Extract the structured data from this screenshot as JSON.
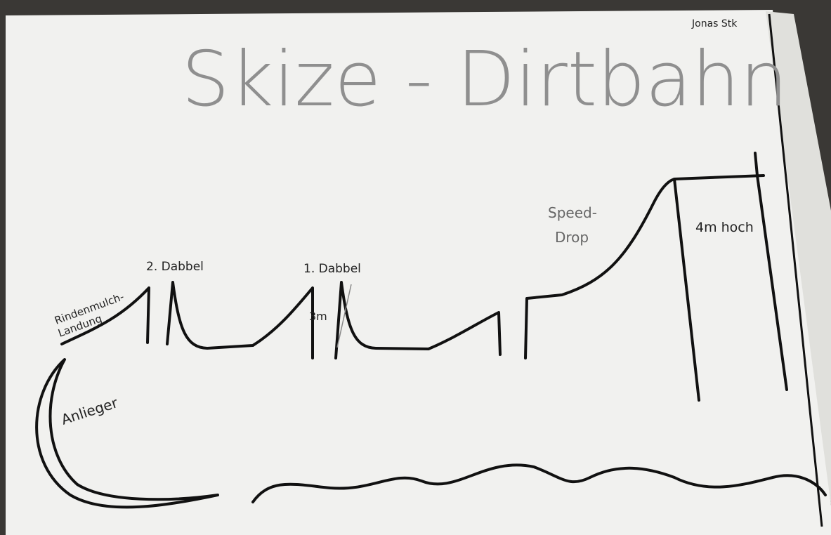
{
  "title": "Skize - Dirtbahn",
  "author": "Jonas Stk",
  "labels": {
    "landing": [
      "Rindenmulch-",
      "Landung"
    ],
    "double_2": "2. Dabbel",
    "double_1": "1. Dabbel",
    "height_double_1": "3m",
    "speed_drop": [
      "Speed-",
      "Drop"
    ],
    "drop_height": "4m hoch",
    "berm": "Anlieger"
  }
}
